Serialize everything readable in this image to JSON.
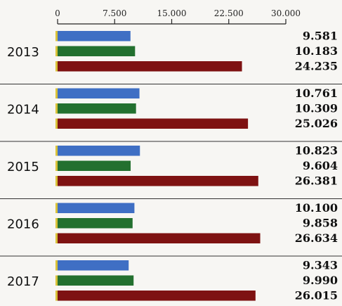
{
  "chart_data": {
    "type": "bar",
    "orientation": "horizontal",
    "categories": [
      "2013",
      "2014",
      "2015",
      "2016",
      "2017"
    ],
    "series": [
      {
        "color": "#3f6fc4",
        "values": [
          9581,
          10761,
          10823,
          10100,
          9343
        ]
      },
      {
        "color": "#23702f",
        "values": [
          10183,
          10309,
          9604,
          9858,
          9990
        ]
      },
      {
        "color": "#7e1212",
        "values": [
          24235,
          25026,
          26381,
          26634,
          26015
        ]
      }
    ],
    "value_labels": [
      [
        "9.581",
        "10.183",
        "24.235"
      ],
      [
        "10.761",
        "10.309",
        "25.026"
      ],
      [
        "10.823",
        "9.604",
        "26.381"
      ],
      [
        "10.100",
        "9.858",
        "26.634"
      ],
      [
        "9.343",
        "9.990",
        "26.015"
      ]
    ],
    "x_ticks": [
      0,
      7500,
      15000,
      22500,
      30000
    ],
    "x_tick_labels": [
      "0",
      "7.500",
      "15.000",
      "22.500",
      "30.000"
    ],
    "xlim": [
      0,
      30000
    ],
    "axis_position": "top",
    "grid": false,
    "legend": "none"
  }
}
